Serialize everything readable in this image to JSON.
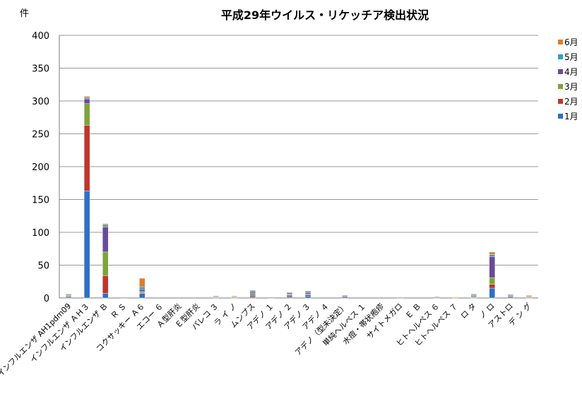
{
  "chart_data": {
    "type": "bar",
    "stacked": true,
    "title": "平成29年ウイルス・リケッチア検出状況",
    "ylabel": "件",
    "ylim": [
      0,
      400
    ],
    "yticks": [
      0,
      50,
      100,
      150,
      200,
      250,
      300,
      350,
      400
    ],
    "grid": true,
    "legend_position": "right",
    "categories": [
      "インフルエンザ AH1pdm09",
      "インフルエンザ ＡＨ３",
      "インフルエンザ Ｂ",
      "Ｒ Ｓ",
      "コクサッキー Ａ６",
      "エコー ６",
      "Ａ型肝炎",
      "Ｅ型肝炎",
      "パレコ ３",
      "ラ イ ノ",
      "ムンプス",
      "アデノ １",
      "アデノ ２",
      "アデノ ３",
      "アデノ ４",
      "アデノ（型未決定）",
      "単純ヘルペス １",
      "水痘・帯状疱疹",
      "サイトメガロ",
      "Ｅ Ｂ",
      "ヒトヘルペス ６",
      "ヒトヘルペス ７",
      "ロ タ",
      "ノ ロ",
      "アストロ",
      "デ ン グ"
    ],
    "series": [
      {
        "name": "1月",
        "color": "#2e6fc7",
        "values": [
          2,
          163,
          7,
          1,
          7,
          0,
          0,
          0,
          0,
          0,
          2,
          0,
          2,
          3,
          0,
          2,
          0,
          0,
          1,
          0,
          1,
          0,
          1,
          15,
          2,
          1
        ]
      },
      {
        "name": "2月",
        "color": "#c0352b",
        "values": [
          1,
          100,
          27,
          0,
          1,
          0,
          0,
          0,
          1,
          1,
          2,
          0,
          2,
          2,
          0,
          1,
          0,
          0,
          0,
          0,
          0,
          0,
          1,
          6,
          1,
          1
        ]
      },
      {
        "name": "3月",
        "color": "#7ea33a",
        "values": [
          1,
          33,
          36,
          0,
          2,
          0,
          0,
          0,
          1,
          1,
          3,
          0,
          1,
          1,
          0,
          1,
          0,
          0,
          0,
          0,
          1,
          0,
          2,
          10,
          1,
          1
        ]
      },
      {
        "name": "4月",
        "color": "#6a4a9a",
        "values": [
          1,
          7,
          38,
          0,
          3,
          0,
          0,
          0,
          0,
          0,
          2,
          1,
          1,
          2,
          0,
          0,
          0,
          0,
          0,
          0,
          0,
          0,
          1,
          32,
          1,
          0
        ]
      },
      {
        "name": "5月",
        "color": "#2ea0c4",
        "values": [
          0,
          2,
          3,
          0,
          4,
          0,
          0,
          0,
          1,
          0,
          2,
          0,
          2,
          2,
          0,
          0,
          0,
          0,
          0,
          0,
          0,
          0,
          1,
          3,
          0,
          0
        ]
      },
      {
        "name": "6月",
        "color": "#e07c2a",
        "values": [
          1,
          2,
          2,
          0,
          13,
          0,
          0,
          0,
          0,
          1,
          1,
          0,
          1,
          1,
          0,
          0,
          0,
          0,
          0,
          0,
          0,
          1,
          0,
          4,
          0,
          1
        ]
      }
    ]
  }
}
